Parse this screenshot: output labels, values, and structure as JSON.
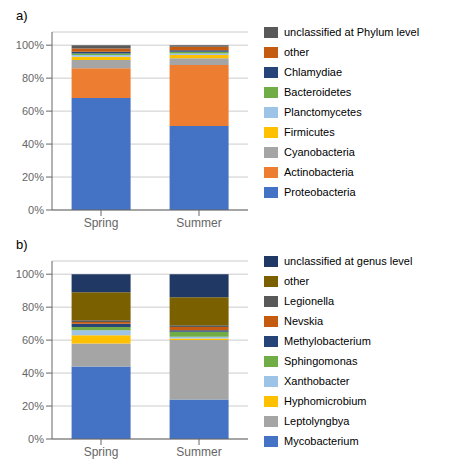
{
  "chart_data": [
    {
      "type": "bar",
      "title": "a)",
      "stacked": true,
      "grid": true,
      "legend": "right",
      "categories": [
        "Spring",
        "Summer"
      ],
      "ylim": [
        0,
        108
      ],
      "yticks": [
        {
          "value": 0,
          "label": "0%"
        },
        {
          "value": 20,
          "label": "20%"
        },
        {
          "value": 40,
          "label": "40%"
        },
        {
          "value": 60,
          "label": "60%"
        },
        {
          "value": 80,
          "label": "80%"
        },
        {
          "value": 100,
          "label": "100%"
        }
      ],
      "series": [
        {
          "name": "Proteobacteria",
          "color": "#4472C4",
          "values": [
            68,
            51
          ]
        },
        {
          "name": "Actinobacteria",
          "color": "#ED7D31",
          "values": [
            18,
            37
          ]
        },
        {
          "name": "Cyanobacteria",
          "color": "#A5A5A5",
          "values": [
            5,
            4
          ]
        },
        {
          "name": "Firmicutes",
          "color": "#FFC000",
          "values": [
            2,
            2
          ]
        },
        {
          "name": "Planctomycetes",
          "color": "#9DC3E6",
          "values": [
            1,
            1
          ]
        },
        {
          "name": "Bacteroidetes",
          "color": "#70AD47",
          "values": [
            1,
            1
          ]
        },
        {
          "name": "Chlamydiae",
          "color": "#264478",
          "values": [
            1,
            1
          ]
        },
        {
          "name": "other",
          "color": "#C55A11",
          "values": [
            2,
            2
          ]
        },
        {
          "name": "unclassified at Phylum level",
          "color": "#595959",
          "values": [
            2,
            1
          ]
        }
      ]
    },
    {
      "type": "bar",
      "title": "b)",
      "stacked": true,
      "grid": true,
      "legend": "right",
      "categories": [
        "Spring",
        "Summer"
      ],
      "ylim": [
        0,
        108
      ],
      "yticks": [
        {
          "value": 0,
          "label": "0%"
        },
        {
          "value": 20,
          "label": "20%"
        },
        {
          "value": 40,
          "label": "40%"
        },
        {
          "value": 60,
          "label": "60%"
        },
        {
          "value": 80,
          "label": "80%"
        },
        {
          "value": 100,
          "label": "100%"
        }
      ],
      "series": [
        {
          "name": "Mycobacterium",
          "color": "#4472C4",
          "values": [
            44,
            24
          ]
        },
        {
          "name": "Leptolyngbya",
          "color": "#A5A5A5",
          "values": [
            14,
            36
          ]
        },
        {
          "name": "Hyphomicrobium",
          "color": "#FFC000",
          "values": [
            5,
            1
          ]
        },
        {
          "name": "Xanthobacter",
          "color": "#9DC3E6",
          "values": [
            3,
            1
          ]
        },
        {
          "name": "Sphingomonas",
          "color": "#70AD47",
          "values": [
            2,
            3
          ]
        },
        {
          "name": "Methylobacterium",
          "color": "#264478",
          "values": [
            2,
            1
          ]
        },
        {
          "name": "Nevskia",
          "color": "#C55A11",
          "values": [
            1,
            2
          ]
        },
        {
          "name": "Legionella",
          "color": "#595959",
          "values": [
            1,
            1
          ]
        },
        {
          "name": "other",
          "color": "#7B6000",
          "values": [
            17,
            17
          ]
        },
        {
          "name": "unclassified at genus level",
          "color": "#203864",
          "values": [
            11,
            14
          ]
        }
      ]
    }
  ]
}
